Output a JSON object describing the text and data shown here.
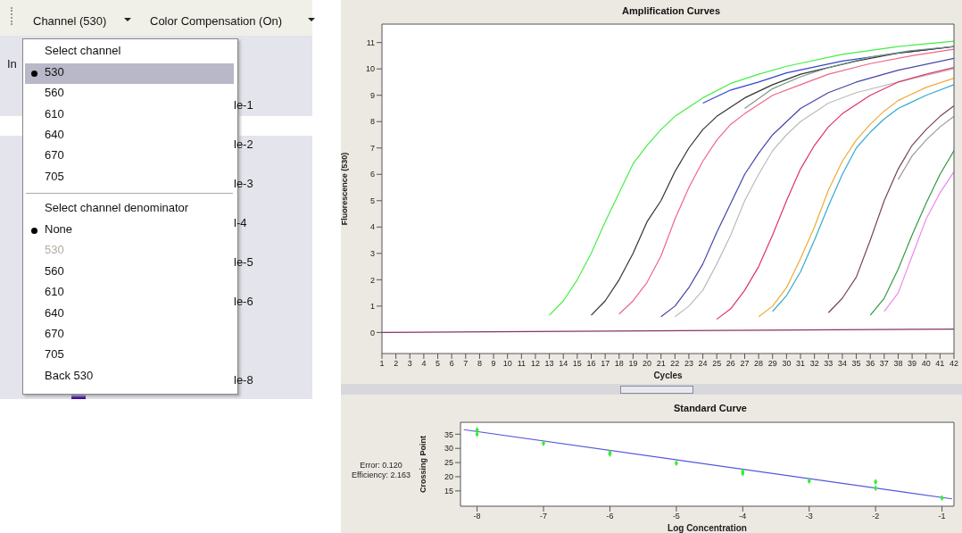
{
  "chart_data": [
    {
      "type": "other",
      "annotations": [
        "Channel (530)",
        "Color Compensation (On)",
        "In",
        "le-1",
        "le-2",
        "le-3",
        "l-4",
        "le-5",
        "le-6",
        "le-8",
        "Select channel",
        "530",
        "560",
        "610",
        "640",
        "670",
        "705",
        "Select channel denominator",
        "None",
        "530",
        "560",
        "610",
        "640",
        "670",
        "705",
        "Back 530"
      ]
    },
    {
      "type": "line",
      "title": "Amplification Curves",
      "xlabel": "Cycles",
      "ylabel": "Fluorescence (530)",
      "xlim": [
        1,
        42
      ],
      "ylim": [
        -0.8,
        11.7
      ],
      "xticks": [
        1,
        2,
        3,
        4,
        5,
        6,
        7,
        8,
        9,
        10,
        11,
        12,
        13,
        14,
        15,
        16,
        17,
        18,
        19,
        20,
        21,
        22,
        23,
        24,
        25,
        26,
        27,
        28,
        29,
        30,
        31,
        32,
        33,
        34,
        35,
        36,
        37,
        38,
        39,
        40,
        41,
        42
      ],
      "yticks": [
        0,
        1,
        2,
        3,
        4,
        5,
        6,
        7,
        8,
        9,
        10,
        11
      ],
      "marker": "none",
      "series": [
        {
          "color": "#44ee44",
          "x": [
            13,
            14,
            15,
            16,
            17,
            18,
            19,
            20,
            21,
            22,
            24,
            26,
            28,
            30,
            34,
            38,
            42
          ],
          "values": [
            0.65,
            1.2,
            2.0,
            3.0,
            4.2,
            5.3,
            6.4,
            7.1,
            7.7,
            8.2,
            8.9,
            9.45,
            9.8,
            10.1,
            10.55,
            10.85,
            11.05
          ]
        },
        {
          "color": "#3344cc",
          "x": [
            24,
            26,
            28,
            30,
            34,
            38,
            42
          ],
          "values": [
            8.7,
            9.2,
            9.5,
            9.85,
            10.3,
            10.6,
            10.85
          ]
        },
        {
          "color": "#333333",
          "x": [
            16,
            17,
            18,
            19,
            20,
            21,
            22,
            23,
            24,
            25,
            27,
            29,
            31,
            35,
            38,
            42
          ],
          "values": [
            0.65,
            1.2,
            2.0,
            3.0,
            4.2,
            5.0,
            6.1,
            7.0,
            7.7,
            8.2,
            8.9,
            9.4,
            9.8,
            10.3,
            10.6,
            10.85
          ]
        },
        {
          "color": "#ee6688",
          "x": [
            18,
            19,
            20,
            21,
            22,
            23,
            24,
            25,
            26,
            27,
            29,
            31,
            33,
            36,
            39,
            42
          ],
          "values": [
            0.7,
            1.2,
            1.9,
            2.9,
            4.3,
            5.5,
            6.5,
            7.3,
            7.9,
            8.3,
            9.0,
            9.4,
            9.8,
            10.2,
            10.5,
            10.75
          ]
        },
        {
          "color": "#7a9a8a",
          "x": [
            27,
            29,
            31,
            33,
            36,
            39,
            42
          ],
          "values": [
            8.5,
            9.25,
            9.7,
            10.05,
            10.45,
            10.7,
            10.85
          ]
        },
        {
          "color": "#4444aa",
          "x": [
            21,
            22,
            23,
            24,
            25,
            26,
            27,
            28,
            29,
            30,
            31,
            33,
            35,
            38,
            42
          ],
          "values": [
            0.6,
            1.0,
            1.7,
            2.6,
            3.8,
            4.9,
            6.0,
            6.8,
            7.5,
            8.0,
            8.5,
            9.1,
            9.5,
            9.95,
            10.4
          ]
        },
        {
          "color": "#bbbbbb",
          "x": [
            22,
            23,
            24,
            25,
            26,
            27,
            28,
            29,
            30,
            31,
            33,
            35,
            38,
            42
          ],
          "values": [
            0.6,
            1.0,
            1.6,
            2.6,
            3.7,
            5.0,
            6.0,
            6.9,
            7.5,
            8.0,
            8.7,
            9.1,
            9.5,
            10.0
          ]
        },
        {
          "color": "#dd3366",
          "x": [
            25,
            26,
            27,
            28,
            29,
            30,
            31,
            32,
            33,
            34,
            36,
            38,
            40,
            42
          ],
          "values": [
            0.5,
            0.9,
            1.6,
            2.5,
            3.7,
            5.0,
            6.2,
            7.1,
            7.8,
            8.3,
            9.0,
            9.5,
            9.8,
            10.05
          ]
        },
        {
          "color": "#eeaa33",
          "x": [
            28,
            29,
            30,
            31,
            32,
            33,
            34,
            35,
            36,
            37,
            38,
            40,
            42
          ],
          "values": [
            0.6,
            1.0,
            1.7,
            2.8,
            4.0,
            5.4,
            6.5,
            7.3,
            7.9,
            8.4,
            8.8,
            9.3,
            9.65
          ]
        },
        {
          "color": "#33aacc",
          "x": [
            29,
            30,
            31,
            32,
            33,
            34,
            35,
            36,
            37,
            38,
            40,
            42
          ],
          "values": [
            0.8,
            1.4,
            2.3,
            3.5,
            4.8,
            6.0,
            7.0,
            7.6,
            8.1,
            8.5,
            9.0,
            9.4
          ]
        },
        {
          "color": "#774455",
          "x": [
            33,
            34,
            35,
            36,
            37,
            38,
            39,
            40,
            41,
            42
          ],
          "values": [
            0.75,
            1.3,
            2.1,
            3.5,
            5.0,
            6.2,
            7.1,
            7.7,
            8.2,
            8.6
          ]
        },
        {
          "color": "#999999",
          "x": [
            38,
            39,
            40,
            41,
            42
          ],
          "values": [
            5.8,
            6.7,
            7.3,
            7.8,
            8.2
          ]
        },
        {
          "color": "#339944",
          "x": [
            36,
            37,
            38,
            39,
            40,
            41,
            42
          ],
          "values": [
            0.65,
            1.3,
            2.4,
            3.7,
            4.9,
            6.0,
            6.9
          ]
        },
        {
          "color": "#ee88ee",
          "x": [
            37,
            38,
            39,
            40,
            41,
            42
          ],
          "values": [
            0.8,
            1.5,
            2.9,
            4.3,
            5.3,
            6.1
          ]
        },
        {
          "color": "#883366",
          "x": [
            1,
            42
          ],
          "values": [
            0.0,
            0.13
          ]
        }
      ]
    },
    {
      "type": "scatter",
      "title": "Standard Curve",
      "xlabel": "Log Concentration",
      "ylabel": "Crossing Point",
      "xlim": [
        -8.25,
        -0.82
      ],
      "ylim": [
        9.6,
        39.2
      ],
      "xticks": [
        -8,
        -7,
        -6,
        -5,
        -4,
        -3,
        -2,
        -1
      ],
      "yticks": [
        15,
        20,
        25,
        30,
        35
      ],
      "annotations": [
        "Error: 0.120",
        "Efficiency: 2.163"
      ],
      "series": [
        {
          "type": "line",
          "color": "#5555dd",
          "marker": "none",
          "x": [
            -8.2,
            -0.85
          ],
          "values": [
            36.6,
            12.2
          ]
        },
        {
          "type": "scatter",
          "color": "#33ee33",
          "marker": "diamond",
          "x": [
            -8,
            -8,
            -7,
            -6,
            -6,
            -5,
            -4,
            -4,
            -3,
            -2,
            -2,
            -1
          ],
          "values": [
            36.5,
            35,
            31.8,
            28.5,
            28.0,
            24.8,
            21.8,
            21.2,
            18.5,
            18.2,
            16.0,
            12.5
          ]
        }
      ]
    }
  ]
}
